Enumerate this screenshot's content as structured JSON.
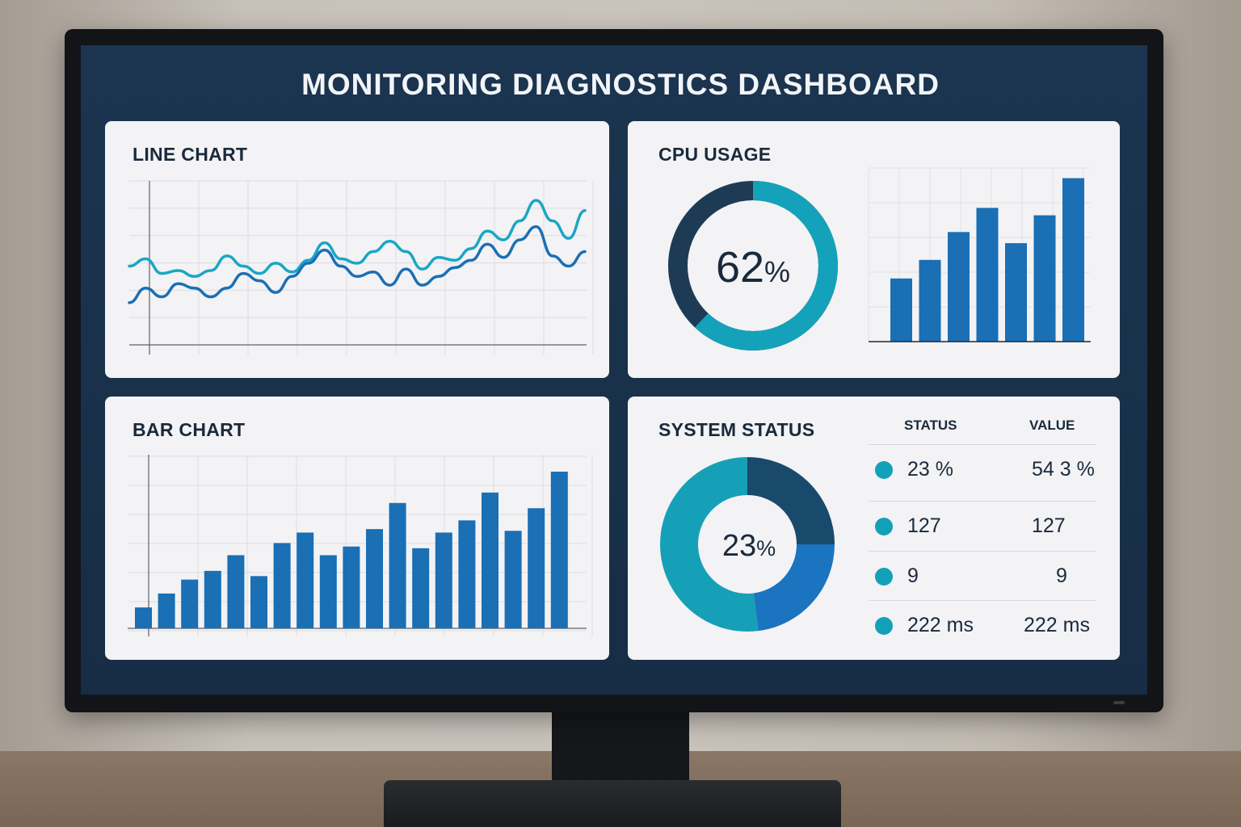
{
  "dashboard": {
    "title": "MONITORING DIAGNOSTICS DASHBOARD"
  },
  "line_panel": {
    "title": "LINE CHART",
    "chart_data": {
      "type": "line",
      "x": [
        0,
        1,
        2,
        3,
        4,
        5,
        6,
        7,
        8,
        9,
        10,
        11,
        12,
        13,
        14,
        15,
        16,
        17,
        18,
        19,
        20,
        21,
        22,
        23,
        24,
        25,
        26,
        27,
        28
      ],
      "series": [
        {
          "values": [
            45,
            50,
            40,
            42,
            38,
            42,
            52,
            45,
            40,
            47,
            41,
            49,
            61,
            50,
            47,
            55,
            62,
            55,
            43,
            51,
            49,
            57,
            69,
            63,
            76,
            90,
            76,
            64,
            83
          ],
          "color": "#19a7c4"
        },
        {
          "values": [
            20,
            30,
            24,
            33,
            30,
            24,
            30,
            40,
            35,
            27,
            38,
            47,
            56,
            45,
            38,
            41,
            32,
            43,
            32,
            38,
            44,
            49,
            60,
            51,
            63,
            72,
            52,
            45,
            55
          ],
          "color": "#1a6fb5"
        }
      ],
      "grid": true
    }
  },
  "cpu_panel": {
    "title": "CPU USAGE",
    "gauge_value": "62",
    "gauge_unit": "%",
    "chart_data": {
      "type": "bar",
      "values": [
        34,
        44,
        59,
        72,
        53,
        68,
        88
      ],
      "color": "#1a6fb5"
    }
  },
  "bar_panel": {
    "title": "BAR CHART",
    "chart_data": {
      "type": "bar",
      "values": [
        12,
        20,
        28,
        33,
        42,
        30,
        49,
        55,
        42,
        47,
        57,
        72,
        46,
        55,
        62,
        78,
        56,
        69,
        90
      ],
      "color": "#1a6fb5",
      "grid": true
    }
  },
  "status_panel": {
    "title": "SYSTEM STATUS",
    "donut_value": "23",
    "donut_unit": "%",
    "chart_data": {
      "type": "pie",
      "values": [
        25,
        23,
        52
      ],
      "colors": [
        "#19496b",
        "#1a74c0",
        "#16a0b8"
      ]
    },
    "table": {
      "headers": [
        "STATUS",
        "VALUE"
      ],
      "rows": [
        {
          "status": "23 %",
          "value": "54 3 %"
        },
        {
          "status": "127",
          "value": "127"
        },
        {
          "status": "9",
          "value": "9"
        },
        {
          "status": "222 ms",
          "value": "222 ms"
        }
      ]
    }
  }
}
